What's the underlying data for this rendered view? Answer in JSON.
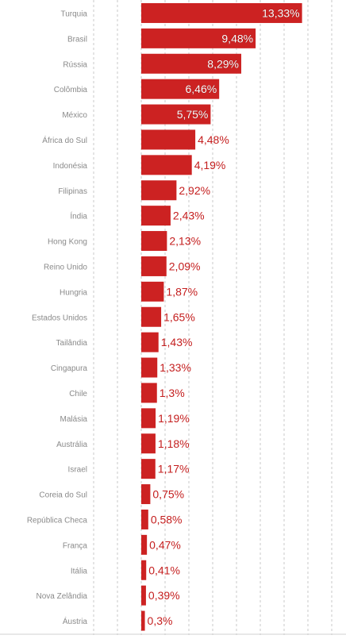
{
  "chart_data": {
    "type": "bar",
    "orientation": "horizontal",
    "categories": [
      "Turquia",
      "Brasil",
      "Rússia",
      "Colômbia",
      "México",
      "África do Sul",
      "Indonésia",
      "Filipinas",
      "Índia",
      "Hong Kong",
      "Reino Unido",
      "Hungria",
      "Estados Unidos",
      "Tailândia",
      "Cingapura",
      "Chile",
      "Malásia",
      "Austrália",
      "Israel",
      "Coreia do Sul",
      "República Checa",
      "França",
      "Itália",
      "Nova Zelândia",
      "Áustria"
    ],
    "values": [
      13.33,
      9.48,
      8.29,
      6.46,
      5.75,
      4.48,
      4.19,
      2.92,
      2.43,
      2.13,
      2.09,
      1.87,
      1.65,
      1.43,
      1.33,
      1.3,
      1.19,
      1.18,
      1.17,
      0.75,
      0.58,
      0.47,
      0.41,
      0.39,
      0.3
    ],
    "value_labels": [
      "13,33%",
      "9,48%",
      "8,29%",
      "6,46%",
      "5,75%",
      "4,48%",
      "4,19%",
      "2,92%",
      "2,43%",
      "2,13%",
      "2,09%",
      "1,87%",
      "1,65%",
      "1,43%",
      "1,33%",
      "1,3%",
      "1,19%",
      "1,18%",
      "1,17%",
      "0,75%",
      "0,58%",
      "0,47%",
      "0,41%",
      "0,39%",
      "0,3%"
    ],
    "title": "",
    "xlabel": "",
    "ylabel": "",
    "grid": true,
    "colors": {
      "bar": "#cc2222",
      "label": "#c41e1e",
      "category_text": "#8a8a8a",
      "grid": "#c8c8c8",
      "axis": "#d0d0d0"
    }
  }
}
